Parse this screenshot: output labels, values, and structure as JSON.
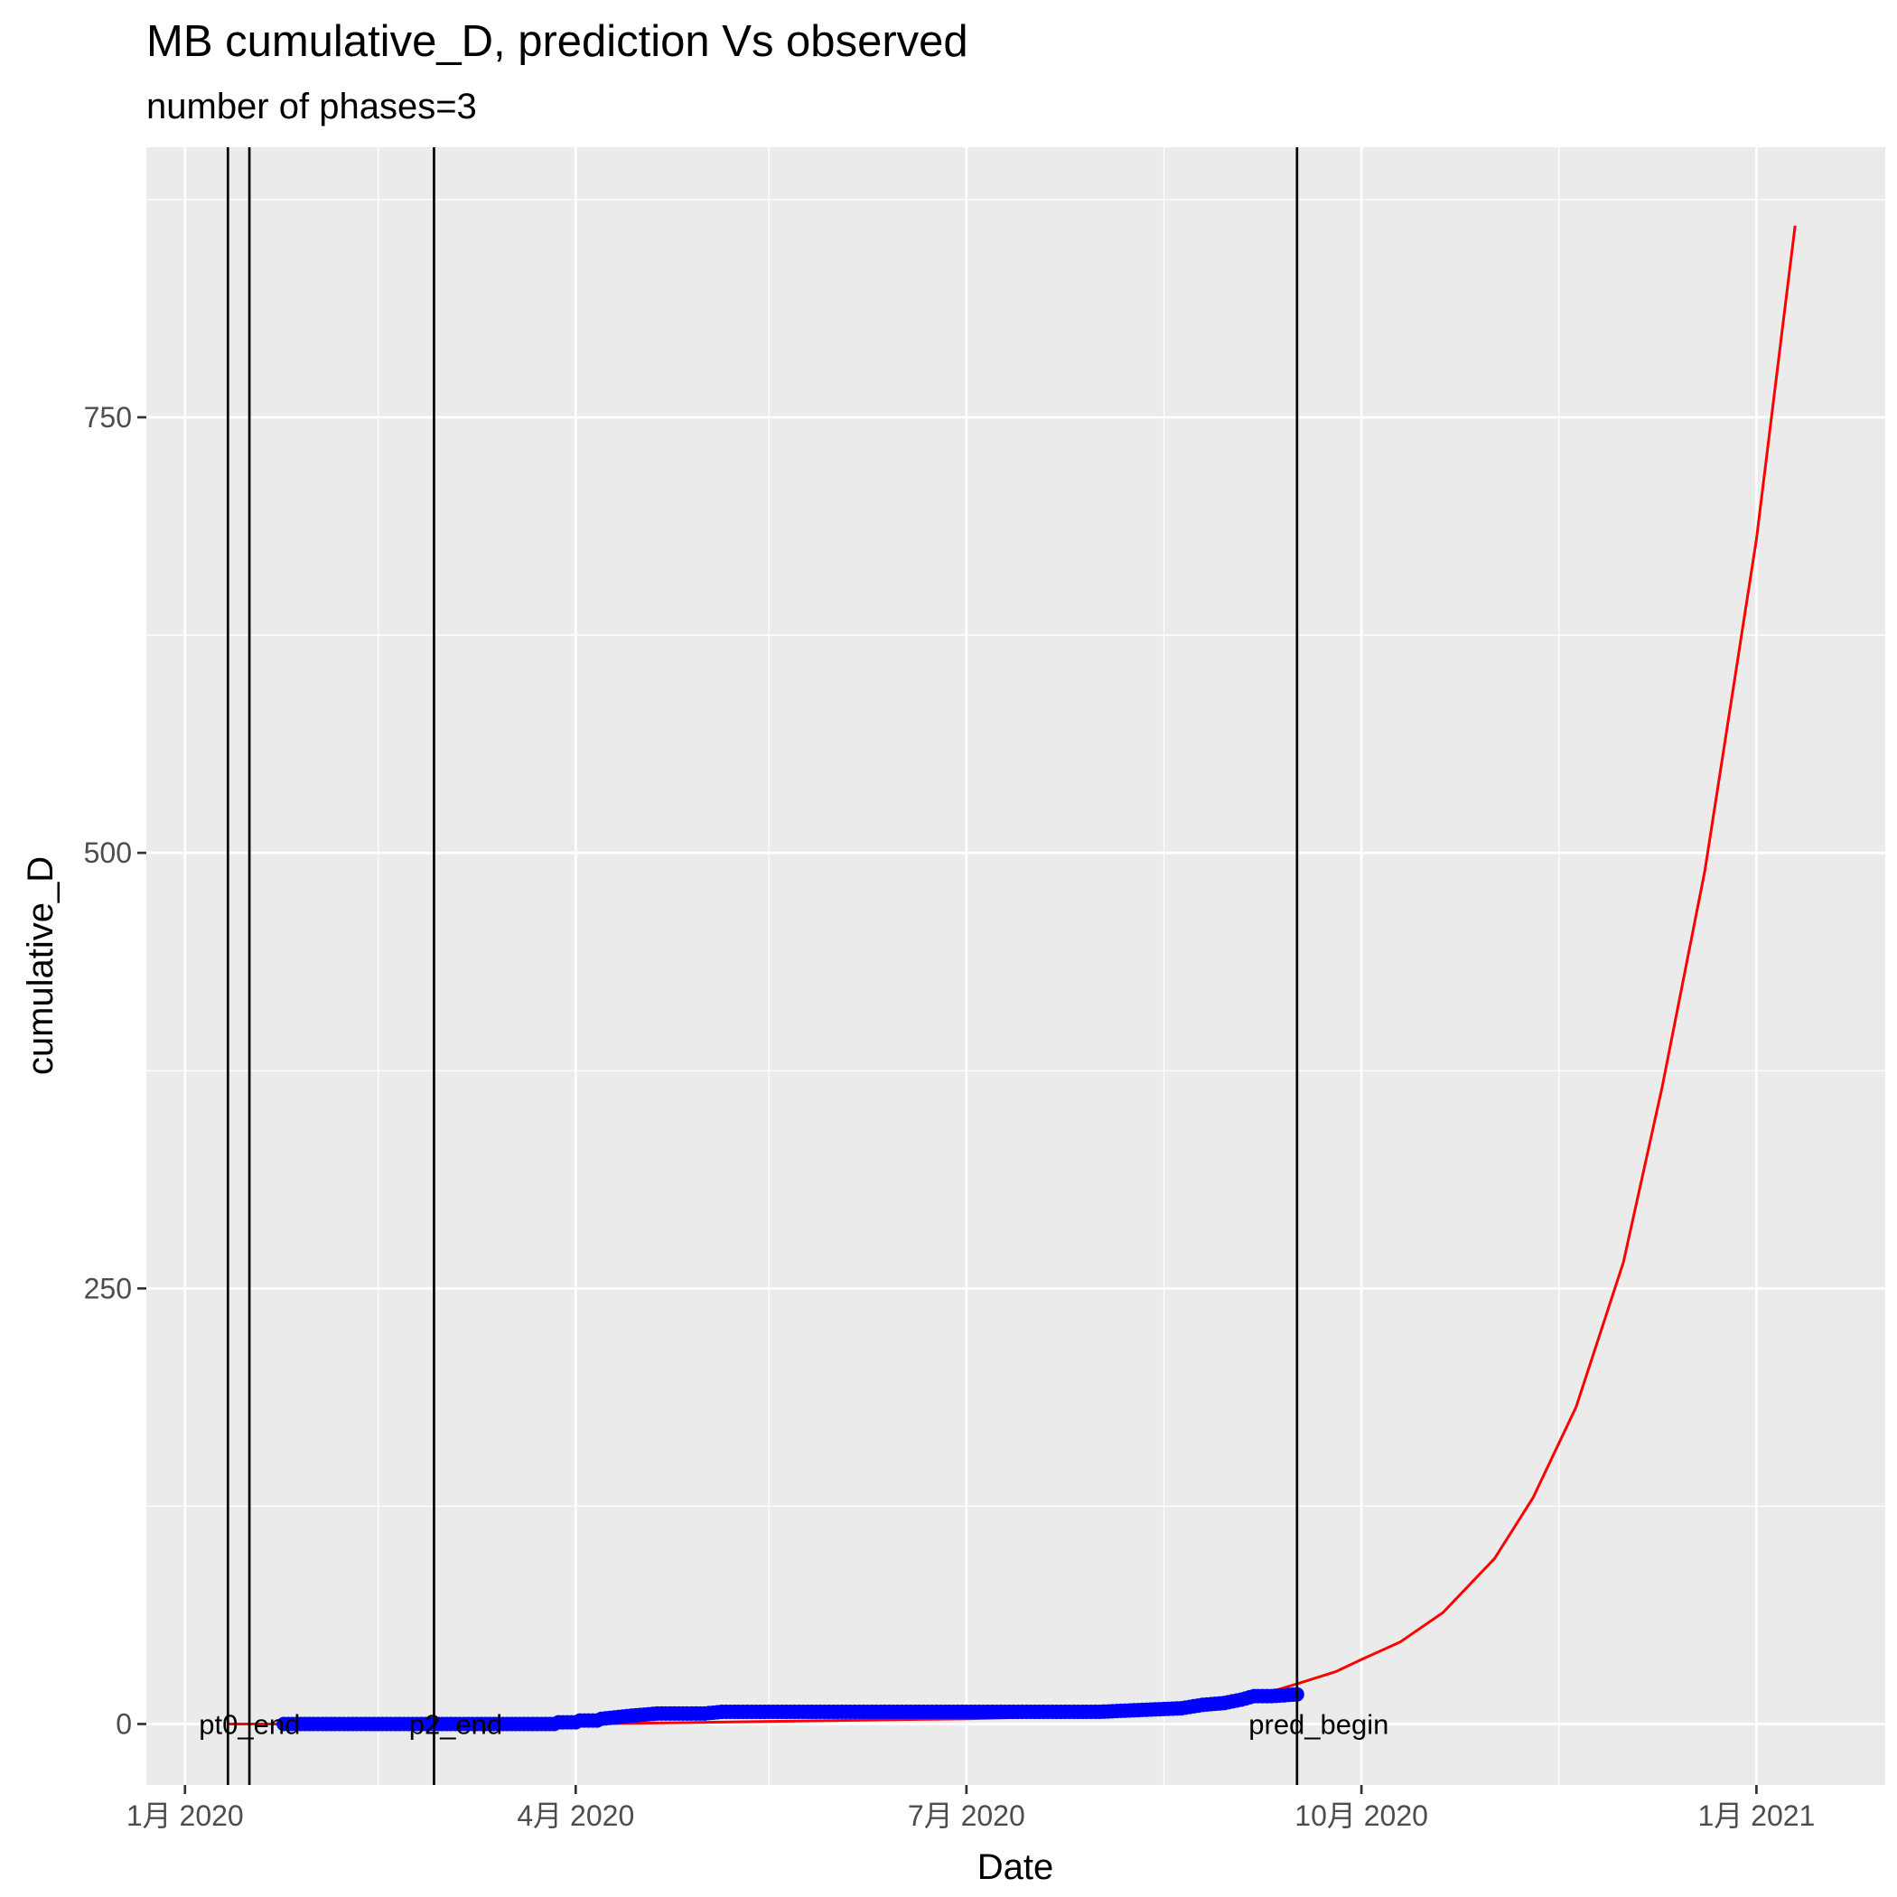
{
  "chart_data": {
    "type": "line",
    "title": "MB cumulative_D,  prediction Vs observed",
    "subtitle": "number of phases=3",
    "xlabel": "Date",
    "ylabel": "cumulative_D",
    "x_axis_kind": "date",
    "xlim": [
      "2019-12-23",
      "2021-01-31"
    ],
    "ylim": [
      -35,
      905
    ],
    "x_ticks": [
      {
        "date": "2020-01-01",
        "label": "1月 2020"
      },
      {
        "date": "2020-04-01",
        "label": "4月 2020"
      },
      {
        "date": "2020-07-01",
        "label": "7月 2020"
      },
      {
        "date": "2020-10-01",
        "label": "10月 2020"
      },
      {
        "date": "2021-01-01",
        "label": "1月 2021"
      }
    ],
    "x_minor_ticks": [
      "2020-02-15",
      "2020-05-16",
      "2020-08-16",
      "2020-11-16"
    ],
    "y_ticks": [
      {
        "value": 0,
        "label": "0"
      },
      {
        "value": 250,
        "label": "250"
      },
      {
        "value": 500,
        "label": "500"
      },
      {
        "value": 750,
        "label": "750"
      }
    ],
    "y_minor_ticks": [
      125,
      375,
      625,
      875
    ],
    "grid": true,
    "panel_background": "#ebebeb",
    "vlines": [
      {
        "date": "2020-01-11",
        "label": "pt0_end"
      },
      {
        "date": "2020-01-16",
        "label": ""
      },
      {
        "date": "2020-02-28",
        "label": "p2_end"
      },
      {
        "date": "2020-09-16",
        "label": "pred_begin"
      }
    ],
    "series": [
      {
        "name": "",
        "role": "observed",
        "color": "#0000ff",
        "style": "points",
        "points": [
          [
            "2020-01-24",
            0
          ],
          [
            "2020-02-15",
            0
          ],
          [
            "2020-03-15",
            0
          ],
          [
            "2020-03-27",
            0
          ],
          [
            "2020-03-28",
            1
          ],
          [
            "2020-04-01",
            1
          ],
          [
            "2020-04-02",
            2
          ],
          [
            "2020-04-06",
            2
          ],
          [
            "2020-04-07",
            3
          ],
          [
            "2020-04-11",
            4
          ],
          [
            "2020-04-15",
            5
          ],
          [
            "2020-04-20",
            6
          ],
          [
            "2020-05-01",
            6
          ],
          [
            "2020-05-05",
            7
          ],
          [
            "2020-05-20",
            7
          ],
          [
            "2020-06-15",
            7
          ],
          [
            "2020-07-15",
            7
          ],
          [
            "2020-08-01",
            7
          ],
          [
            "2020-08-10",
            8
          ],
          [
            "2020-08-20",
            9
          ],
          [
            "2020-08-25",
            11
          ],
          [
            "2020-08-30",
            12
          ],
          [
            "2020-09-03",
            14
          ],
          [
            "2020-09-06",
            16
          ],
          [
            "2020-09-10",
            16
          ],
          [
            "2020-09-16",
            17
          ]
        ]
      },
      {
        "name": "",
        "role": "prediction",
        "color": "#ff0000",
        "style": "line",
        "points": [
          [
            "2020-01-11",
            0
          ],
          [
            "2020-02-01",
            0
          ],
          [
            "2020-03-01",
            0
          ],
          [
            "2020-04-01",
            0
          ],
          [
            "2020-05-01",
            1
          ],
          [
            "2020-06-01",
            2
          ],
          [
            "2020-07-01",
            3
          ],
          [
            "2020-08-01",
            5
          ],
          [
            "2020-08-20",
            8
          ],
          [
            "2020-09-01",
            12
          ],
          [
            "2020-09-16",
            23
          ],
          [
            "2020-09-25",
            30
          ],
          [
            "2020-10-01",
            37
          ],
          [
            "2020-10-10",
            47
          ],
          [
            "2020-10-20",
            64
          ],
          [
            "2020-11-01",
            95
          ],
          [
            "2020-11-10",
            130
          ],
          [
            "2020-11-20",
            182
          ],
          [
            "2020-12-01",
            265
          ],
          [
            "2020-12-10",
            365
          ],
          [
            "2020-12-20",
            490
          ],
          [
            "2021-01-01",
            680
          ],
          [
            "2021-01-10",
            860
          ]
        ]
      }
    ]
  }
}
